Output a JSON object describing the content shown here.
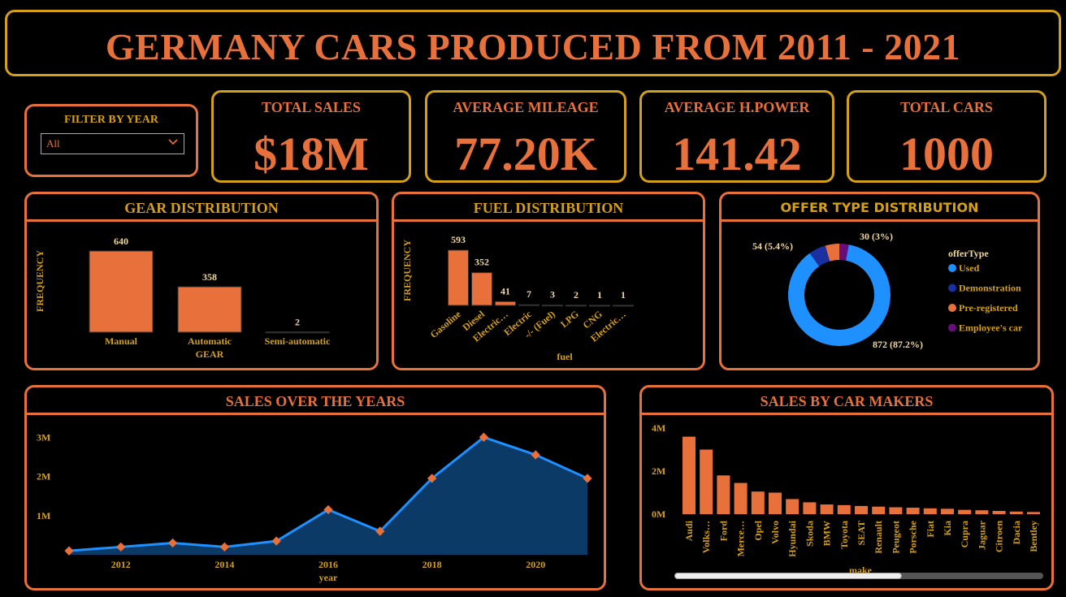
{
  "header": {
    "title": "GERMANY CARS PRODUCED FROM 2011 - 2021"
  },
  "filter": {
    "label": "FILTER BY YEAR",
    "value": "All"
  },
  "kpis": [
    {
      "label": "TOTAL SALES",
      "value": "$18M"
    },
    {
      "label": "AVERAGE MILEAGE",
      "value": "77.20K"
    },
    {
      "label": "AVERAGE H.POWER",
      "value": "141.42"
    },
    {
      "label": "TOTAL CARS",
      "value": "1000"
    }
  ],
  "colors": {
    "accent": "#e8703a",
    "gold": "#d4a017",
    "used": "#1e90ff",
    "demonstration": "#1a2fa0",
    "preregistered": "#e8703a",
    "employee": "#6a0d7a",
    "area": "#0b3a66"
  },
  "chart_data": [
    {
      "type": "bar",
      "title": "GEAR DISTRIBUTION",
      "xlabel": "GEAR",
      "ylabel": "FREQUENCY",
      "categories": [
        "Manual",
        "Automatic",
        "Semi-automatic"
      ],
      "values": [
        640,
        358,
        2
      ],
      "data_labels": [
        "640",
        "358",
        "2"
      ]
    },
    {
      "type": "bar",
      "title": "FUEL DISTRIBUTION",
      "xlabel": "fuel",
      "ylabel": "FREQUENCY",
      "categories": [
        "Gasoline",
        "Diesel",
        "Electric…",
        "Electric",
        "-/- (Fuel)",
        "LPG",
        "CNG",
        "Electric…"
      ],
      "values": [
        593,
        352,
        41,
        7,
        3,
        2,
        1,
        1
      ],
      "data_labels": [
        "593",
        "352",
        "41",
        "7",
        "3",
        "2",
        "1",
        "1"
      ]
    },
    {
      "type": "pie",
      "title": "OFFER TYPE DISTRIBUTION",
      "legend_title": "offerType",
      "categories": [
        "Used",
        "Demonstration",
        "Pre-registered",
        "Employee's car"
      ],
      "values": [
        872,
        54,
        44,
        30
      ],
      "data_labels": [
        "872 (87.2%)",
        "54 (5.4%)",
        "",
        "30 (3%)"
      ],
      "legend": "right"
    },
    {
      "type": "area",
      "title": "SALES OVER THE YEARS",
      "xlabel": "year",
      "ylabel": "",
      "x": [
        2011,
        2012,
        2013,
        2014,
        2015,
        2016,
        2017,
        2018,
        2019,
        2020,
        2021
      ],
      "values": [
        0.1,
        0.2,
        0.3,
        0.2,
        0.35,
        1.15,
        0.6,
        1.95,
        3.0,
        2.55,
        1.95
      ],
      "x_ticks": [
        "2012",
        "2014",
        "2016",
        "2018",
        "2020"
      ],
      "y_ticks": [
        "1M",
        "2M",
        "3M"
      ],
      "ylim": [
        0,
        3.4
      ]
    },
    {
      "type": "bar",
      "title": "SALES BY CAR MAKERS",
      "xlabel": "make",
      "ylabel": "",
      "categories": [
        "Audi",
        "Volks…",
        "Ford",
        "Merce…",
        "Opel",
        "Volvo",
        "Hyundai",
        "Skoda",
        "BMW",
        "Toyota",
        "SEAT",
        "Renault",
        "Peugeot",
        "Porsche",
        "Fiat",
        "Kia",
        "Cupra",
        "Jaguar",
        "Citroen",
        "Dacia",
        "Bentley"
      ],
      "values": [
        3.6,
        3.0,
        1.8,
        1.45,
        1.05,
        1.0,
        0.7,
        0.55,
        0.45,
        0.42,
        0.38,
        0.35,
        0.32,
        0.3,
        0.27,
        0.25,
        0.2,
        0.18,
        0.15,
        0.12,
        0.1
      ],
      "y_ticks": [
        "0M",
        "2M",
        "4M"
      ],
      "ylim": [
        0,
        4
      ]
    }
  ]
}
